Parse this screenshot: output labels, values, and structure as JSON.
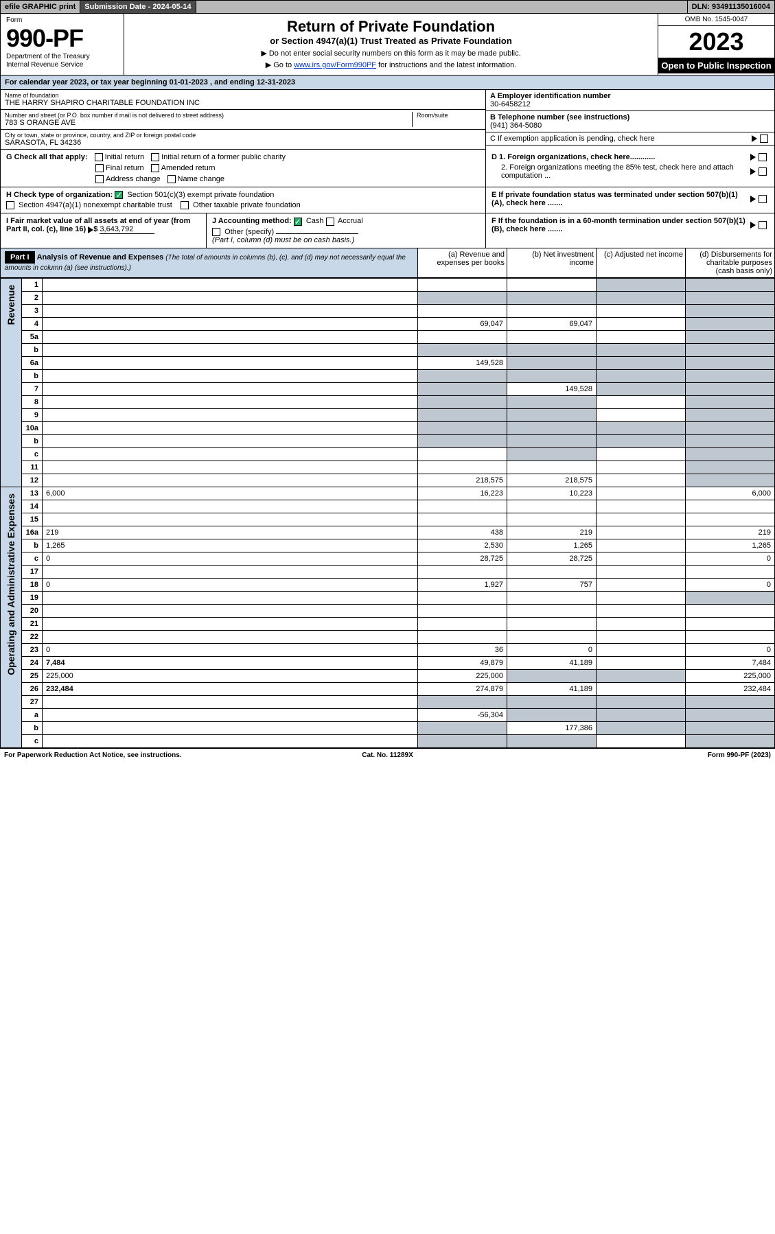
{
  "topbar": {
    "efile": "efile GRAPHIC print",
    "submission": "Submission Date - 2024-05-14",
    "dln": "DLN: 93491135016004"
  },
  "header": {
    "form_label": "Form",
    "form_number": "990-PF",
    "dept1": "Department of the Treasury",
    "dept2": "Internal Revenue Service",
    "title": "Return of Private Foundation",
    "subtitle": "or Section 4947(a)(1) Trust Treated as Private Foundation",
    "note1": "▶ Do not enter social security numbers on this form as it may be made public.",
    "note2_pre": "▶ Go to ",
    "note2_link": "www.irs.gov/Form990PF",
    "note2_post": " for instructions and the latest information.",
    "omb": "OMB No. 1545-0047",
    "year": "2023",
    "open_public": "Open to Public Inspection"
  },
  "cal_year": "For calendar year 2023, or tax year beginning 01-01-2023           , and ending 12-31-2023",
  "foundation": {
    "name_label": "Name of foundation",
    "name": "THE HARRY SHAPIRO CHARITABLE FOUNDATION INC",
    "addr_label": "Number and street (or P.O. box number if mail is not delivered to street address)",
    "addr": "783 S ORANGE AVE",
    "room_label": "Room/suite",
    "room": "",
    "city_label": "City or town, state or province, country, and ZIP or foreign postal code",
    "city": "SARASOTA, FL  34236",
    "ein_label": "A Employer identification number",
    "ein": "30-6458212",
    "phone_label": "B Telephone number (see instructions)",
    "phone": "(941) 364-5080",
    "c_label": "C If exemption application is pending, check here",
    "d1": "D 1. Foreign organizations, check here............",
    "d2": "2. Foreign organizations meeting the 85% test, check here and attach computation ...",
    "e": "E  If private foundation status was terminated under section 507(b)(1)(A), check here .......",
    "f": "F  If the foundation is in a 60-month termination under section 507(b)(1)(B), check here .......",
    "g_label": "G Check all that apply:",
    "g_opts": [
      "Initial return",
      "Initial return of a former public charity",
      "Final return",
      "Amended return",
      "Address change",
      "Name change"
    ],
    "h_label": "H Check type of organization:",
    "h_opt1": "Section 501(c)(3) exempt private foundation",
    "h_opt2": "Section 4947(a)(1) nonexempt charitable trust",
    "h_opt3": "Other taxable private foundation",
    "i_label": "I Fair market value of all assets at end of year (from Part II, col. (c), line 16)",
    "i_val": "3,643,792",
    "j_label": "J Accounting method:",
    "j_cash": "Cash",
    "j_accrual": "Accrual",
    "j_other": "Other (specify)",
    "j_note": "(Part I, column (d) must be on cash basis.)"
  },
  "part1": {
    "label": "Part I",
    "title": "Analysis of Revenue and Expenses",
    "title_note": "(The total of amounts in columns (b), (c), and (d) may not necessarily equal the amounts in column (a) (see instructions).)",
    "col_a": "(a)   Revenue and expenses per books",
    "col_b": "(b)   Net investment income",
    "col_c": "(c)   Adjusted net income",
    "col_d": "(d)   Disbursements for charitable purposes (cash basis only)"
  },
  "side_labels": {
    "revenue": "Revenue",
    "expenses": "Operating and Administrative Expenses"
  },
  "rows": [
    {
      "n": "1",
      "d": "",
      "a": "",
      "b": "",
      "c": "",
      "sh": [
        "c",
        "d"
      ]
    },
    {
      "n": "2",
      "d": "",
      "a": "",
      "b": "",
      "c": "",
      "sh": [
        "a",
        "b",
        "c",
        "d"
      ]
    },
    {
      "n": "3",
      "d": "",
      "a": "",
      "b": "",
      "c": "",
      "sh": [
        "d"
      ]
    },
    {
      "n": "4",
      "d": "",
      "a": "69,047",
      "b": "69,047",
      "c": "",
      "sh": [
        "d"
      ]
    },
    {
      "n": "5a",
      "d": "",
      "a": "",
      "b": "",
      "c": "",
      "sh": [
        "d"
      ]
    },
    {
      "n": "b",
      "d": "",
      "a": "",
      "b": "",
      "c": "",
      "sh": [
        "a",
        "b",
        "c",
        "d"
      ]
    },
    {
      "n": "6a",
      "d": "",
      "a": "149,528",
      "b": "",
      "c": "",
      "sh": [
        "b",
        "c",
        "d"
      ]
    },
    {
      "n": "b",
      "d": "",
      "a": "",
      "b": "",
      "c": "",
      "sh": [
        "a",
        "b",
        "c",
        "d"
      ]
    },
    {
      "n": "7",
      "d": "",
      "a": "",
      "b": "149,528",
      "c": "",
      "sh": [
        "a",
        "c",
        "d"
      ]
    },
    {
      "n": "8",
      "d": "",
      "a": "",
      "b": "",
      "c": "",
      "sh": [
        "a",
        "b",
        "d"
      ]
    },
    {
      "n": "9",
      "d": "",
      "a": "",
      "b": "",
      "c": "",
      "sh": [
        "a",
        "b",
        "d"
      ]
    },
    {
      "n": "10a",
      "d": "",
      "a": "",
      "b": "",
      "c": "",
      "sh": [
        "a",
        "b",
        "c",
        "d"
      ]
    },
    {
      "n": "b",
      "d": "",
      "a": "",
      "b": "",
      "c": "",
      "sh": [
        "a",
        "b",
        "c",
        "d"
      ]
    },
    {
      "n": "c",
      "d": "",
      "a": "",
      "b": "",
      "c": "",
      "sh": [
        "b",
        "d"
      ]
    },
    {
      "n": "11",
      "d": "",
      "a": "",
      "b": "",
      "c": "",
      "sh": [
        "d"
      ]
    },
    {
      "n": "12",
      "d": "",
      "a": "218,575",
      "b": "218,575",
      "c": "",
      "sh": [
        "d"
      ],
      "bold": true
    },
    {
      "n": "13",
      "d": "6,000",
      "a": "16,223",
      "b": "10,223",
      "c": ""
    },
    {
      "n": "14",
      "d": "",
      "a": "",
      "b": "",
      "c": ""
    },
    {
      "n": "15",
      "d": "",
      "a": "",
      "b": "",
      "c": ""
    },
    {
      "n": "16a",
      "d": "219",
      "a": "438",
      "b": "219",
      "c": ""
    },
    {
      "n": "b",
      "d": "1,265",
      "a": "2,530",
      "b": "1,265",
      "c": ""
    },
    {
      "n": "c",
      "d": "0",
      "a": "28,725",
      "b": "28,725",
      "c": ""
    },
    {
      "n": "17",
      "d": "",
      "a": "",
      "b": "",
      "c": ""
    },
    {
      "n": "18",
      "d": "0",
      "a": "1,927",
      "b": "757",
      "c": ""
    },
    {
      "n": "19",
      "d": "",
      "a": "",
      "b": "",
      "c": "",
      "sh": [
        "d"
      ]
    },
    {
      "n": "20",
      "d": "",
      "a": "",
      "b": "",
      "c": ""
    },
    {
      "n": "21",
      "d": "",
      "a": "",
      "b": "",
      "c": ""
    },
    {
      "n": "22",
      "d": "",
      "a": "",
      "b": "",
      "c": ""
    },
    {
      "n": "23",
      "d": "0",
      "a": "36",
      "b": "0",
      "c": ""
    },
    {
      "n": "24",
      "d": "7,484",
      "a": "49,879",
      "b": "41,189",
      "c": "",
      "bold": true
    },
    {
      "n": "25",
      "d": "225,000",
      "a": "225,000",
      "b": "",
      "c": "",
      "sh": [
        "b",
        "c"
      ]
    },
    {
      "n": "26",
      "d": "232,484",
      "a": "274,879",
      "b": "41,189",
      "c": "",
      "bold": true
    },
    {
      "n": "27",
      "d": "",
      "a": "",
      "b": "",
      "c": "",
      "sh": [
        "a",
        "b",
        "c",
        "d"
      ]
    },
    {
      "n": "a",
      "d": "",
      "a": "-56,304",
      "b": "",
      "c": "",
      "sh": [
        "b",
        "c",
        "d"
      ],
      "bold": true
    },
    {
      "n": "b",
      "d": "",
      "a": "",
      "b": "177,386",
      "c": "",
      "sh": [
        "a",
        "c",
        "d"
      ],
      "bold": true
    },
    {
      "n": "c",
      "d": "",
      "a": "",
      "b": "",
      "c": "",
      "sh": [
        "a",
        "b",
        "d"
      ],
      "bold": true
    }
  ],
  "footer": {
    "left": "For Paperwork Reduction Act Notice, see instructions.",
    "center": "Cat. No. 11289X",
    "right": "Form 990-PF (2023)"
  },
  "colors": {
    "header_bg": "#c8d8e8",
    "shaded": "#bfc8d0",
    "topbar_gray": "#b8b8b8",
    "link": "#0033cc"
  }
}
